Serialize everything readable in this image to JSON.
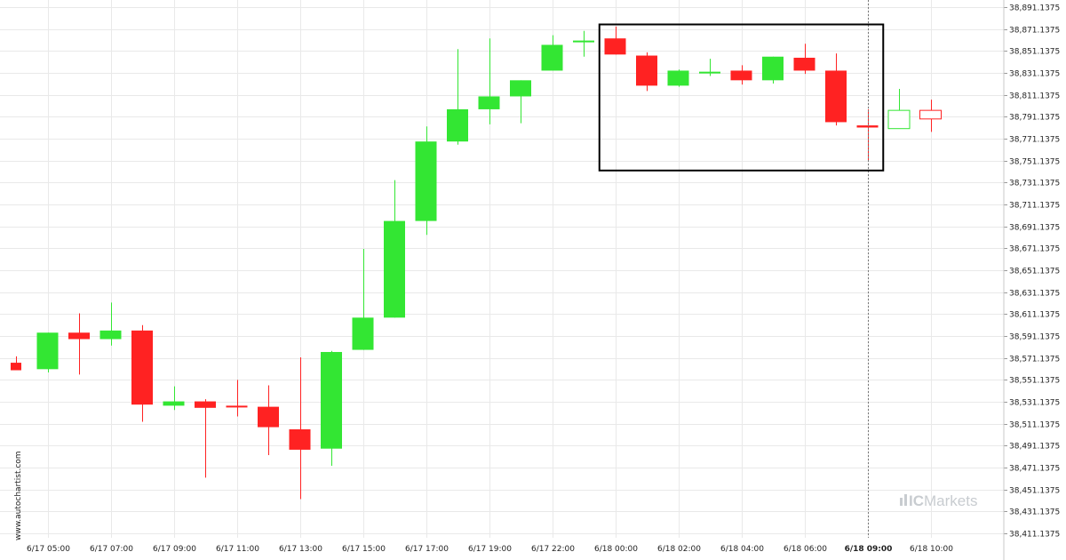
{
  "watermark": "www.autochartist.com",
  "brand": {
    "prefix": "IC",
    "name": "Markets"
  },
  "colors": {
    "up": "#33e633",
    "down": "#ff2222",
    "grid": "#e9e9e9",
    "box": "#000000"
  },
  "chart_data": {
    "type": "candlestick",
    "title": "",
    "xlabel": "",
    "ylabel": "",
    "grid": true,
    "ylim": [
      38401.1375,
      38891.1375
    ],
    "y_ticks": [
      "38,891.1375",
      "38,871.1375",
      "38,851.1375",
      "38,831.1375",
      "38,811.1375",
      "38,791.1375",
      "38,771.1375",
      "38,751.1375",
      "38,731.1375",
      "38,711.1375",
      "38,691.1375",
      "38,671.1375",
      "38,651.1375",
      "38,631.1375",
      "38,611.1375",
      "38,591.1375",
      "38,571.1375",
      "38,551.1375",
      "38,531.1375",
      "38,511.1375",
      "38,491.1375",
      "38,471.1375",
      "38,451.1375",
      "38,431.1375",
      "38,411.1375"
    ],
    "x_ticks": [
      {
        "label": "6/17 05:00",
        "index": 1
      },
      {
        "label": "6/17 07:00",
        "index": 3
      },
      {
        "label": "6/17 09:00",
        "index": 5
      },
      {
        "label": "6/17 11:00",
        "index": 7
      },
      {
        "label": "6/17 13:00",
        "index": 9
      },
      {
        "label": "6/17 15:00",
        "index": 11
      },
      {
        "label": "6/17 17:00",
        "index": 13
      },
      {
        "label": "6/17 19:00",
        "index": 15
      },
      {
        "label": "6/17 22:00",
        "index": 17
      },
      {
        "label": "6/18 00:00",
        "index": 19
      },
      {
        "label": "6/18 02:00",
        "index": 21
      },
      {
        "label": "6/18 04:00",
        "index": 23
      },
      {
        "label": "6/18 06:00",
        "index": 25
      },
      {
        "label": "6/18 09:00",
        "index": 27,
        "bold": true
      },
      {
        "label": "6/18 10:00",
        "index": 29
      }
    ],
    "current_index": 27,
    "candles": [
      {
        "o": 38560,
        "h": 38566,
        "l": 38553,
        "c": 38553
      },
      {
        "o": 38554,
        "h": 38588,
        "l": 38551,
        "c": 38588
      },
      {
        "o": 38588,
        "h": 38606,
        "l": 38549,
        "c": 38582
      },
      {
        "o": 38582,
        "h": 38616,
        "l": 38576,
        "c": 38590
      },
      {
        "o": 38590,
        "h": 38595,
        "l": 38505,
        "c": 38521
      },
      {
        "o": 38520,
        "h": 38538,
        "l": 38516,
        "c": 38524
      },
      {
        "o": 38524,
        "h": 38526,
        "l": 38453,
        "c": 38518
      },
      {
        "o": 38520,
        "h": 38544,
        "l": 38510,
        "c": 38519
      },
      {
        "o": 38519,
        "h": 38539,
        "l": 38474,
        "c": 38500
      },
      {
        "o": 38498,
        "h": 38565,
        "l": 38433,
        "c": 38479
      },
      {
        "o": 38480,
        "h": 38571,
        "l": 38464,
        "c": 38570
      },
      {
        "o": 38572,
        "h": 38666,
        "l": 38572,
        "c": 38602
      },
      {
        "o": 38602,
        "h": 38730,
        "l": 38602,
        "c": 38692
      },
      {
        "o": 38692,
        "h": 38780,
        "l": 38679,
        "c": 38766
      },
      {
        "o": 38766,
        "h": 38852,
        "l": 38763,
        "c": 38796
      },
      {
        "o": 38796,
        "h": 38862,
        "l": 38782,
        "c": 38808
      },
      {
        "o": 38808,
        "h": 38823,
        "l": 38783,
        "c": 38823
      },
      {
        "o": 38832,
        "h": 38865,
        "l": 38832,
        "c": 38856
      },
      {
        "o": 38859,
        "h": 38869,
        "l": 38845,
        "c": 38860
      },
      {
        "o": 38862,
        "h": 38873,
        "l": 38847,
        "c": 38847
      },
      {
        "o": 38846,
        "h": 38849,
        "l": 38813,
        "c": 38818
      },
      {
        "o": 38818,
        "h": 38833,
        "l": 38817,
        "c": 38832
      },
      {
        "o": 38830,
        "h": 38843,
        "l": 38827,
        "c": 38831
      },
      {
        "o": 38832,
        "h": 38837,
        "l": 38819,
        "c": 38823
      },
      {
        "o": 38823,
        "h": 38845,
        "l": 38820,
        "c": 38845
      },
      {
        "o": 38844,
        "h": 38857,
        "l": 38829,
        "c": 38832
      },
      {
        "o": 38832,
        "h": 38848,
        "l": 38781,
        "c": 38784
      },
      {
        "o": 38781,
        "h": 38796,
        "l": 38748,
        "c": 38779
      },
      {
        "o": 38778,
        "h": 38815,
        "l": 38778,
        "c": 38795,
        "hollow": true
      },
      {
        "o": 38795,
        "h": 38805,
        "l": 38775,
        "c": 38787,
        "hollow": true
      }
    ],
    "pattern_box": {
      "start_index": 18.5,
      "end_index": 27.5,
      "high": 38875,
      "low": 38739
    }
  }
}
